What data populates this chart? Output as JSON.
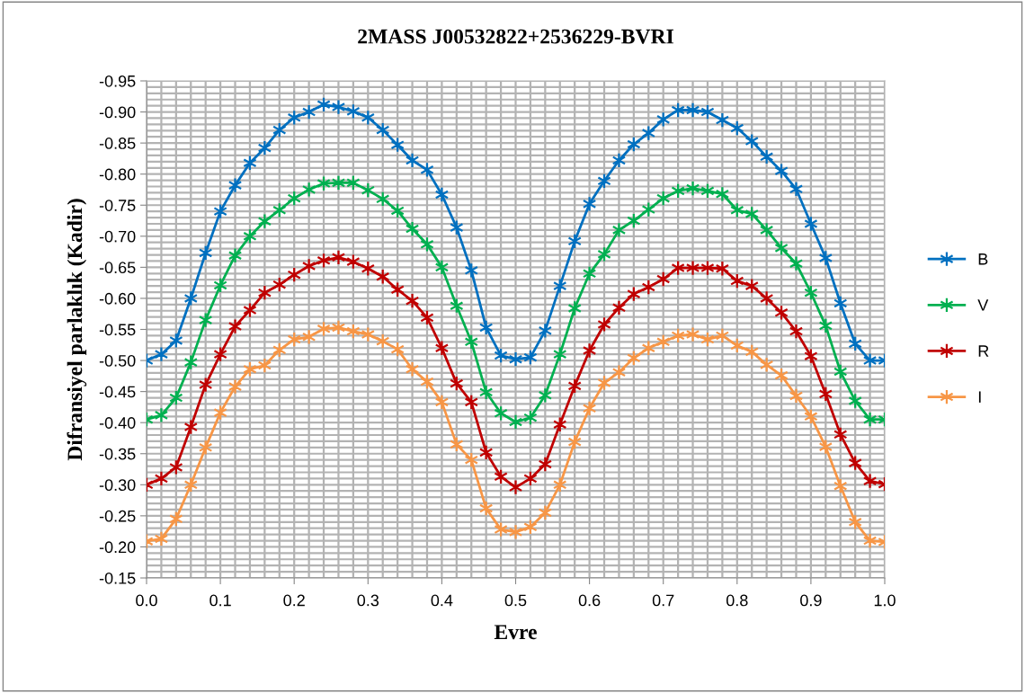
{
  "chart_data": {
    "type": "line",
    "title": "2MASS J00532822+2536229-BVRI",
    "xlabel": "Evre",
    "ylabel": "Difransiyel parlaklık (Kadir)",
    "x": [
      0.0,
      0.02,
      0.04,
      0.06,
      0.08,
      0.1,
      0.12,
      0.14,
      0.16,
      0.18,
      0.2,
      0.22,
      0.24,
      0.26,
      0.28,
      0.3,
      0.32,
      0.34,
      0.36,
      0.38,
      0.4,
      0.42,
      0.44,
      0.46,
      0.48,
      0.5,
      0.52,
      0.54,
      0.56,
      0.58,
      0.6,
      0.62,
      0.64,
      0.66,
      0.68,
      0.7,
      0.72,
      0.74,
      0.76,
      0.78,
      0.8,
      0.82,
      0.84,
      0.86,
      0.88,
      0.9,
      0.92,
      0.94,
      0.96,
      0.98,
      1.0
    ],
    "series": [
      {
        "name": "B",
        "color": "#0070c0",
        "values": [
          -0.5,
          -0.51,
          -0.532,
          -0.6,
          -0.673,
          -0.74,
          -0.782,
          -0.818,
          -0.842,
          -0.871,
          -0.891,
          -0.9,
          -0.912,
          -0.908,
          -0.901,
          -0.891,
          -0.871,
          -0.847,
          -0.822,
          -0.807,
          -0.767,
          -0.714,
          -0.645,
          -0.553,
          -0.508,
          -0.502,
          -0.505,
          -0.548,
          -0.62,
          -0.692,
          -0.752,
          -0.789,
          -0.822,
          -0.848,
          -0.866,
          -0.888,
          -0.903,
          -0.903,
          -0.9,
          -0.887,
          -0.874,
          -0.853,
          -0.828,
          -0.805,
          -0.776,
          -0.72,
          -0.665,
          -0.592,
          -0.527,
          -0.5,
          -0.5
        ]
      },
      {
        "name": "V",
        "color": "#00b050",
        "values": [
          -0.405,
          -0.412,
          -0.44,
          -0.497,
          -0.565,
          -0.621,
          -0.669,
          -0.7,
          -0.724,
          -0.742,
          -0.761,
          -0.775,
          -0.785,
          -0.786,
          -0.786,
          -0.774,
          -0.76,
          -0.741,
          -0.712,
          -0.687,
          -0.65,
          -0.588,
          -0.53,
          -0.449,
          -0.415,
          -0.401,
          -0.408,
          -0.444,
          -0.51,
          -0.584,
          -0.64,
          -0.671,
          -0.71,
          -0.725,
          -0.743,
          -0.761,
          -0.773,
          -0.777,
          -0.773,
          -0.768,
          -0.742,
          -0.736,
          -0.71,
          -0.681,
          -0.656,
          -0.609,
          -0.556,
          -0.482,
          -0.435,
          -0.405,
          -0.405
        ]
      },
      {
        "name": "R",
        "color": "#c00000",
        "values": [
          -0.3,
          -0.31,
          -0.328,
          -0.393,
          -0.461,
          -0.51,
          -0.555,
          -0.581,
          -0.609,
          -0.622,
          -0.638,
          -0.652,
          -0.661,
          -0.666,
          -0.659,
          -0.648,
          -0.635,
          -0.614,
          -0.596,
          -0.569,
          -0.52,
          -0.463,
          -0.433,
          -0.352,
          -0.313,
          -0.296,
          -0.31,
          -0.333,
          -0.397,
          -0.459,
          -0.516,
          -0.558,
          -0.585,
          -0.607,
          -0.618,
          -0.631,
          -0.649,
          -0.649,
          -0.649,
          -0.648,
          -0.628,
          -0.62,
          -0.6,
          -0.577,
          -0.547,
          -0.507,
          -0.446,
          -0.381,
          -0.335,
          -0.306,
          -0.301
        ]
      },
      {
        "name": "I",
        "color": "#f79646",
        "values": [
          -0.209,
          -0.213,
          -0.245,
          -0.3,
          -0.36,
          -0.416,
          -0.458,
          -0.486,
          -0.492,
          -0.517,
          -0.534,
          -0.538,
          -0.551,
          -0.553,
          -0.547,
          -0.542,
          -0.531,
          -0.518,
          -0.486,
          -0.466,
          -0.433,
          -0.365,
          -0.34,
          -0.262,
          -0.228,
          -0.224,
          -0.232,
          -0.255,
          -0.3,
          -0.369,
          -0.423,
          -0.464,
          -0.481,
          -0.504,
          -0.52,
          -0.53,
          -0.54,
          -0.542,
          -0.534,
          -0.54,
          -0.524,
          -0.514,
          -0.493,
          -0.476,
          -0.443,
          -0.41,
          -0.361,
          -0.298,
          -0.24,
          -0.21,
          -0.208
        ]
      }
    ],
    "xlim": [
      0.0,
      1.0
    ],
    "xticks": [
      {
        "value": 0.0,
        "label": "0.0"
      },
      {
        "value": 0.1,
        "label": "0.1"
      },
      {
        "value": 0.2,
        "label": "0.2"
      },
      {
        "value": 0.3,
        "label": "0.3"
      },
      {
        "value": 0.4,
        "label": "0.4"
      },
      {
        "value": 0.5,
        "label": "0.5"
      },
      {
        "value": 0.6,
        "label": "0.6"
      },
      {
        "value": 0.7,
        "label": "0.7"
      },
      {
        "value": 0.8,
        "label": "0.8"
      },
      {
        "value": 0.9,
        "label": "0.9"
      },
      {
        "value": 1.0,
        "label": "1.0"
      }
    ],
    "ylim": [
      -0.15,
      -0.95
    ],
    "yticks": [
      {
        "value": -0.95,
        "label": "-0.95"
      },
      {
        "value": -0.9,
        "label": "-0.90"
      },
      {
        "value": -0.85,
        "label": "-0.85"
      },
      {
        "value": -0.8,
        "label": "-0.80"
      },
      {
        "value": -0.75,
        "label": "-0.75"
      },
      {
        "value": -0.7,
        "label": "-0.70"
      },
      {
        "value": -0.65,
        "label": "-0.65"
      },
      {
        "value": -0.6,
        "label": "-0.60"
      },
      {
        "value": -0.55,
        "label": "-0.55"
      },
      {
        "value": -0.5,
        "label": "-0.50"
      },
      {
        "value": -0.45,
        "label": "-0.45"
      },
      {
        "value": -0.4,
        "label": "-0.40"
      },
      {
        "value": -0.35,
        "label": "-0.35"
      },
      {
        "value": -0.3,
        "label": "-0.30"
      },
      {
        "value": -0.25,
        "label": "-0.25"
      },
      {
        "value": -0.2,
        "label": "-0.20"
      },
      {
        "value": -0.15,
        "label": "-0.15"
      }
    ],
    "grid": true,
    "legend": "right",
    "marker": "cross",
    "line_style": "solid"
  }
}
